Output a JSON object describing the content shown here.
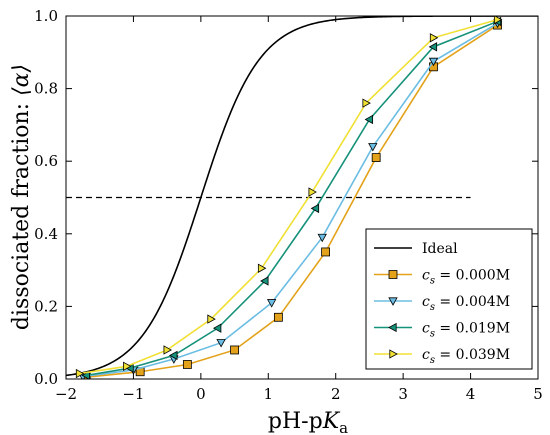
{
  "chart_data": {
    "type": "line",
    "xlabel_main": "pH-p",
    "xlabel_var": "K",
    "xlabel_sub": "a",
    "ylabel_text": "dissociated fraction: ",
    "ylabel_symbol": "⟨α⟩",
    "xlim": [
      -2,
      5
    ],
    "ylim": [
      0,
      1
    ],
    "xticks": [
      "−2",
      "−1",
      "0",
      "1",
      "2",
      "3",
      "4",
      "5"
    ],
    "yticks": [
      "0.0",
      "0.2",
      "0.4",
      "0.6",
      "0.8",
      "1.0"
    ],
    "grid": false,
    "legend_position": "lower-right",
    "reference_line": {
      "y": 0.5,
      "x_start": -2,
      "x_end": 4,
      "style": "dashed",
      "color": "#000000"
    },
    "ideal": {
      "name": "Ideal",
      "formula": "1/(1+10^(-x))",
      "color": "#000000"
    },
    "series": [
      {
        "name_var": "c",
        "name_sub": "s",
        "name_value": " = 0.000M",
        "color": "#E3A21A",
        "marker": "square",
        "x": [
          -1.7,
          -0.9,
          -0.2,
          0.5,
          1.15,
          1.85,
          2.6,
          3.45,
          4.4
        ],
        "y": [
          0.005,
          0.02,
          0.04,
          0.08,
          0.17,
          0.35,
          0.61,
          0.86,
          0.975
        ]
      },
      {
        "name_var": "c",
        "name_sub": "s",
        "name_value": " = 0.004M",
        "color": "#6BBDE3",
        "marker": "triangle-down",
        "x": [
          -1.75,
          -1.0,
          -0.4,
          0.3,
          1.05,
          1.8,
          2.55,
          3.45,
          4.4
        ],
        "y": [
          0.007,
          0.025,
          0.055,
          0.1,
          0.21,
          0.39,
          0.64,
          0.875,
          0.98
        ]
      },
      {
        "name_var": "c",
        "name_sub": "s",
        "name_value": " = 0.019M",
        "color": "#16917A",
        "marker": "triangle-left",
        "x": [
          -1.7,
          -1.05,
          -0.4,
          0.25,
          0.95,
          1.7,
          2.5,
          3.45,
          4.4
        ],
        "y": [
          0.01,
          0.03,
          0.065,
          0.14,
          0.27,
          0.47,
          0.715,
          0.915,
          0.985
        ]
      },
      {
        "name_var": "c",
        "name_sub": "s",
        "name_value": " = 0.039M",
        "color": "#F0E034",
        "marker": "triangle-right",
        "x": [
          -1.8,
          -1.1,
          -0.5,
          0.15,
          0.9,
          1.65,
          2.45,
          3.45,
          4.4
        ],
        "y": [
          0.015,
          0.035,
          0.08,
          0.165,
          0.305,
          0.515,
          0.76,
          0.94,
          0.99
        ]
      }
    ]
  }
}
